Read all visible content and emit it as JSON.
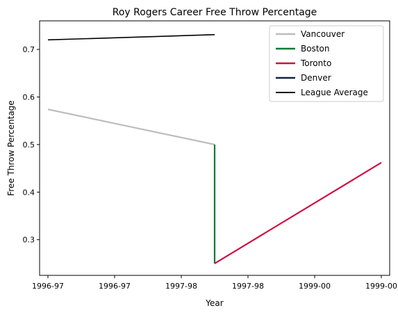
{
  "chart_data": {
    "type": "line",
    "title": "Roy Rogers  Career Free Throw Percentage",
    "xlabel": "Year",
    "ylabel": "Free Throw Percentage",
    "x_tick_labels": [
      "1996-97",
      "1996-97",
      "1997-98",
      "1997-98",
      "1999-00",
      "1999-00"
    ],
    "xlim": [
      -0.05,
      2.05
    ],
    "ylim": [
      0.225,
      0.76
    ],
    "y_ticks": [
      0.3,
      0.4,
      0.5,
      0.6,
      0.7
    ],
    "y_tick_labels": [
      "0.3",
      "0.4",
      "0.5",
      "0.6",
      "0.7"
    ],
    "legend_position": "top-right",
    "series": [
      {
        "name": "Vancouver",
        "color": "#bdbdbd",
        "x": [
          0,
          1
        ],
        "y": [
          0.574,
          0.5
        ]
      },
      {
        "name": "Boston",
        "color": "#007a33",
        "x": [
          1,
          1
        ],
        "y": [
          0.5,
          0.25
        ]
      },
      {
        "name": "Toronto",
        "color": "#ce1141",
        "x": [
          1,
          2
        ],
        "y": [
          0.25,
          0.462
        ]
      },
      {
        "name": "Denver",
        "color": "#0e2240",
        "x": [],
        "y": []
      },
      {
        "name": "League Average",
        "color": "#000000",
        "x": [
          0,
          1
        ],
        "y": [
          0.72,
          0.731
        ]
      }
    ]
  }
}
